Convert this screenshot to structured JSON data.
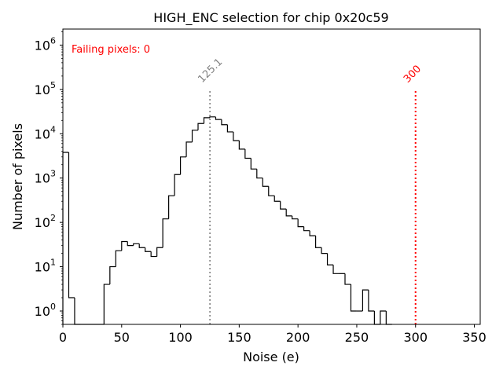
{
  "chart_data": {
    "type": "histogram",
    "title": "HIGH_ENC selection for chip 0x20c59",
    "xlabel": "Noise (e)",
    "ylabel": "Number of pixels",
    "yscale": "log",
    "xlim": [
      0,
      355
    ],
    "ylim": [
      0.5,
      2300000
    ],
    "xticks": [
      0,
      50,
      100,
      150,
      200,
      250,
      300,
      350
    ],
    "xtick_labels": [
      "0",
      "50",
      "100",
      "150",
      "200",
      "250",
      "300",
      "350"
    ],
    "yticks": [
      {
        "value": 1,
        "base": "10",
        "exp": "0"
      },
      {
        "value": 10,
        "base": "10",
        "exp": "1"
      },
      {
        "value": 100,
        "base": "10",
        "exp": "2"
      },
      {
        "value": 1000,
        "base": "10",
        "exp": "3"
      },
      {
        "value": 10000,
        "base": "10",
        "exp": "4"
      },
      {
        "value": 100000,
        "base": "10",
        "exp": "5"
      },
      {
        "value": 1000000,
        "base": "10",
        "exp": "6"
      }
    ],
    "bin_width": 5,
    "bins": [
      [
        0,
        3800
      ],
      [
        5,
        2
      ],
      [
        10,
        0
      ],
      [
        15,
        0
      ],
      [
        20,
        0
      ],
      [
        25,
        0
      ],
      [
        30,
        0
      ],
      [
        35,
        4
      ],
      [
        40,
        10
      ],
      [
        45,
        23
      ],
      [
        50,
        37
      ],
      [
        55,
        30
      ],
      [
        60,
        33
      ],
      [
        65,
        27
      ],
      [
        70,
        22
      ],
      [
        75,
        17
      ],
      [
        80,
        27
      ],
      [
        85,
        120
      ],
      [
        90,
        400
      ],
      [
        95,
        1200
      ],
      [
        100,
        3000
      ],
      [
        105,
        6500
      ],
      [
        110,
        12000
      ],
      [
        115,
        17000
      ],
      [
        120,
        23000
      ],
      [
        125,
        24000
      ],
      [
        130,
        21000
      ],
      [
        135,
        16000
      ],
      [
        140,
        11000
      ],
      [
        145,
        7000
      ],
      [
        150,
        4500
      ],
      [
        155,
        2800
      ],
      [
        160,
        1600
      ],
      [
        165,
        1000
      ],
      [
        170,
        650
      ],
      [
        175,
        400
      ],
      [
        180,
        300
      ],
      [
        185,
        200
      ],
      [
        190,
        140
      ],
      [
        195,
        120
      ],
      [
        200,
        80
      ],
      [
        205,
        65
      ],
      [
        210,
        50
      ],
      [
        215,
        27
      ],
      [
        220,
        20
      ],
      [
        225,
        11
      ],
      [
        230,
        7
      ],
      [
        235,
        7
      ],
      [
        240,
        4
      ],
      [
        245,
        1
      ],
      [
        250,
        1
      ],
      [
        255,
        3
      ],
      [
        260,
        1
      ],
      [
        265,
        0
      ],
      [
        270,
        1
      ],
      [
        275,
        0
      ]
    ],
    "lines": [
      {
        "name": "mean",
        "x": 125.1,
        "label": "125.1",
        "color": "#808080",
        "ymax": 100000
      },
      {
        "name": "cut",
        "x": 300,
        "label": "300",
        "color": "#ff0000",
        "ymax": 100000
      }
    ],
    "annotation": {
      "text": "Failing pixels: 0",
      "color": "#ff0000"
    }
  }
}
